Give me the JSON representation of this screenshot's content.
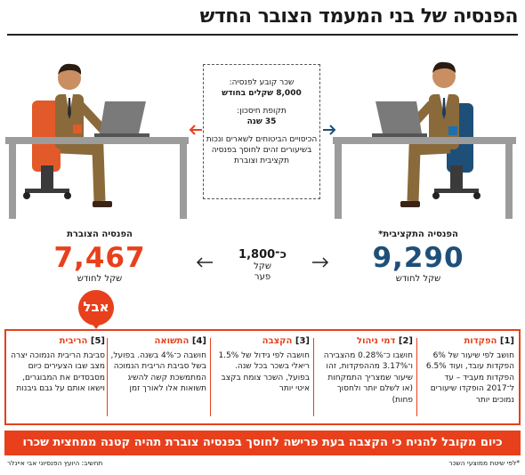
{
  "title": "הפנסיה של בני המעמד הצובר החדש",
  "info": {
    "salary_label": "שכר קובע לפנסיה:",
    "salary_value": "8,000 שקלים בחודש",
    "period_label": "תקופת חיסכון:",
    "period_value": "35 שנה",
    "coverage": "הכיסויים הביטוחים לשארים ונכות בשיעורים זהים לחוסך בפנסיה תקציבית וצוברת"
  },
  "left": {
    "label": "הפנסיה הצוברת",
    "value": "7,467",
    "unit": "שקל לחודש"
  },
  "right": {
    "label": "הפנסיה התקציבית*",
    "value": "9,290",
    "unit": "שקל לחודש"
  },
  "gap": {
    "value": "כ־1,800",
    "unit": "שקל",
    "word": "פער"
  },
  "but": "אבל",
  "factors": [
    {
      "num": "[1]",
      "name": "הפקדות",
      "text": "חושב לפי שיעור של 6% הפקדות עובד, ועוד 6.5% הפקדות מעביד – עד ל־2017 הופקדו שיעורים נמוכים יותר"
    },
    {
      "num": "[2]",
      "name": "דמי ניהול",
      "text": "חושבו כ־0.28% מהצבירה ו־3.17% מההפקדות, זהו שיעור שמצריך התמקחות (או לשלם יותר ולחסוך פחות)"
    },
    {
      "num": "[3]",
      "name": "הקצבה",
      "text": "חושבה לפי גידול של 1.5% ריאלי בשכר בכל שנה. בפועל, השכר צומח בקצב איטי יותר"
    },
    {
      "num": "[4]",
      "name": "התשואה",
      "text": "חושבה כ־4% בשנה. בפועל, בשל סביבת הריבית הנמוכה המתמשכת קשה להשיג תשואות אלו לאורך זמן"
    },
    {
      "num": "[5]",
      "name": "הריבית",
      "text": "סביבת הריבית הנמוכה יצרה מצב שבו הצעירים כיום מסבסדים את המבוגרים, וישאו אותם על גבם גיבנות"
    }
  ],
  "banner": "כיום מקובל להניח כי הקצבה בעת פרישה לחוסך בפנסיה צוברת תהיה קטנה ממחצית שכרו",
  "footnote_right": "*לפי שיטת ממוצעי השכר",
  "footnote_left": "תחשיב: היועץ הפנסיוני אבי איינלר",
  "colors": {
    "accent": "#e8401c",
    "blue": "#1e4f79",
    "arrow_left": "#e8401c",
    "arrow_right": "#1e4f79"
  }
}
